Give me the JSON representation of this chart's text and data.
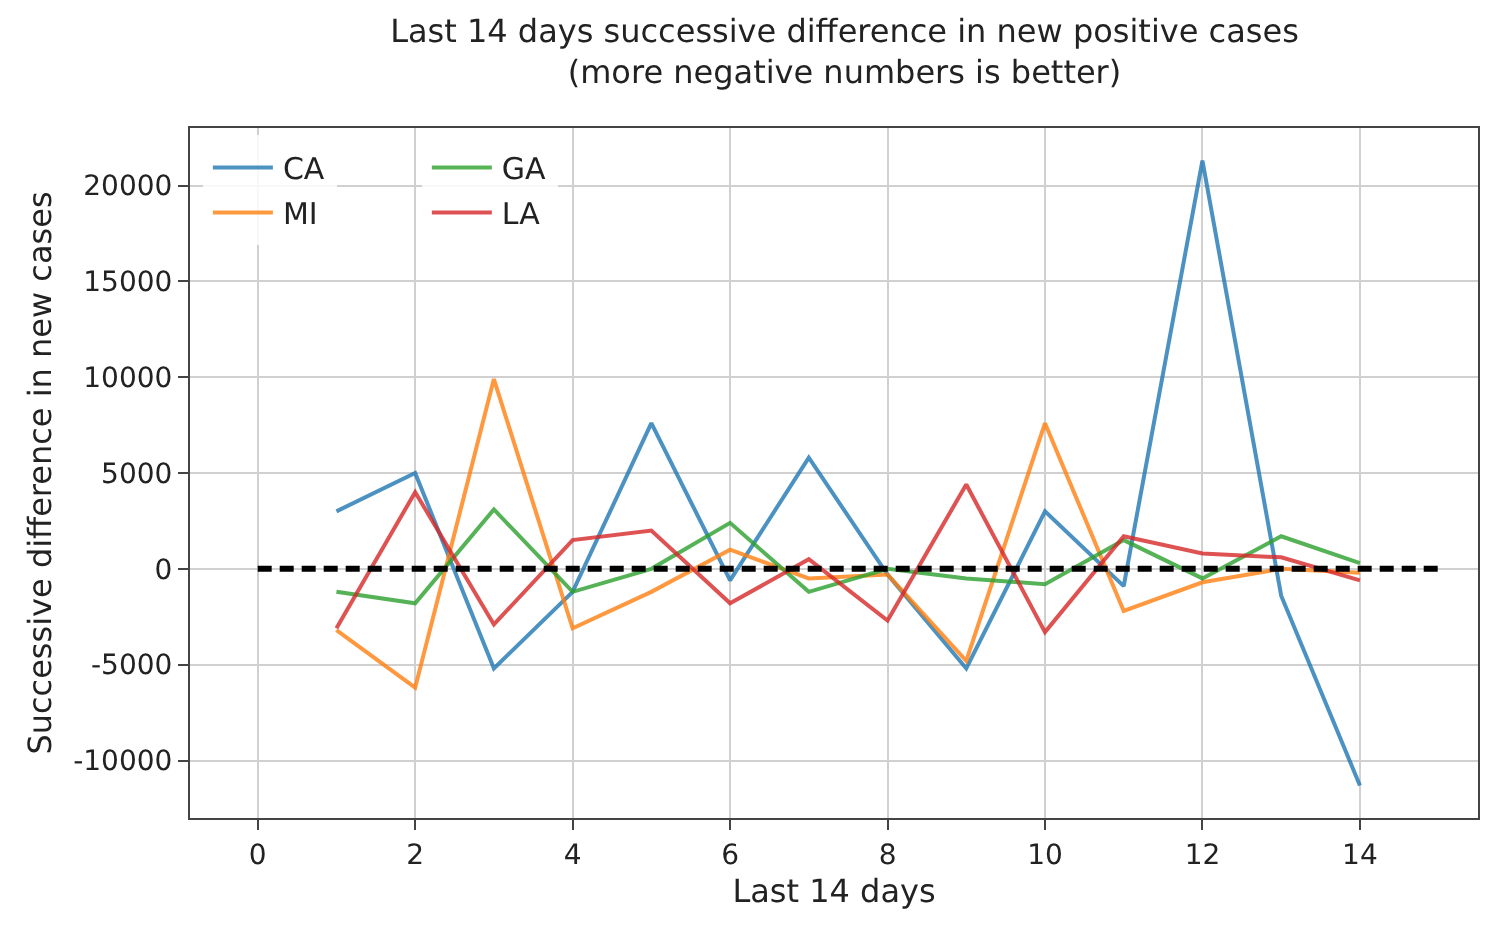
{
  "chart_data": {
    "type": "line",
    "title": "Last 14 days successive difference in new positive cases\n(more negative numbers is better)",
    "xlabel": "Last 14 days",
    "ylabel": "Successive difference in new cases",
    "x": [
      1,
      2,
      3,
      4,
      5,
      6,
      7,
      8,
      9,
      10,
      11,
      12,
      13,
      14
    ],
    "series": [
      {
        "name": "CA",
        "color": "#1f77b4",
        "values": [
          3000,
          5000,
          -5200,
          -1200,
          7600,
          -600,
          5800,
          -300,
          -5200,
          3000,
          -900,
          21300,
          -1400,
          -11300
        ]
      },
      {
        "name": "MI",
        "color": "#ff7f0e",
        "values": [
          -3200,
          -6200,
          9900,
          -3100,
          -1200,
          1000,
          -500,
          -300,
          -4800,
          7600,
          -2200,
          -700,
          0,
          -200
        ]
      },
      {
        "name": "GA",
        "color": "#2ca02c",
        "values": [
          -1200,
          -1800,
          3100,
          -1200,
          0,
          2400,
          -1200,
          0,
          -500,
          -800,
          1500,
          -500,
          1700,
          300
        ]
      },
      {
        "name": "LA",
        "color": "#d62728",
        "values": [
          -3100,
          4000,
          -2900,
          1500,
          2000,
          -1800,
          500,
          -2700,
          4400,
          -3300,
          1700,
          800,
          600,
          -600
        ]
      },
      {
        "color": "#000000",
        "x": [
          0,
          15
        ],
        "values": [
          0,
          0
        ],
        "line_style": "dashed"
      }
    ],
    "xlim": [
      -0.86,
      15.5
    ],
    "ylim": [
      -13000,
      23000
    ],
    "xticks": [
      0,
      2,
      4,
      6,
      8,
      10,
      12,
      14
    ],
    "yticks": [
      -10000,
      -5000,
      0,
      5000,
      10000,
      15000,
      20000
    ],
    "grid": true,
    "legend": "top left",
    "marker": "none",
    "line_style": "solid"
  }
}
